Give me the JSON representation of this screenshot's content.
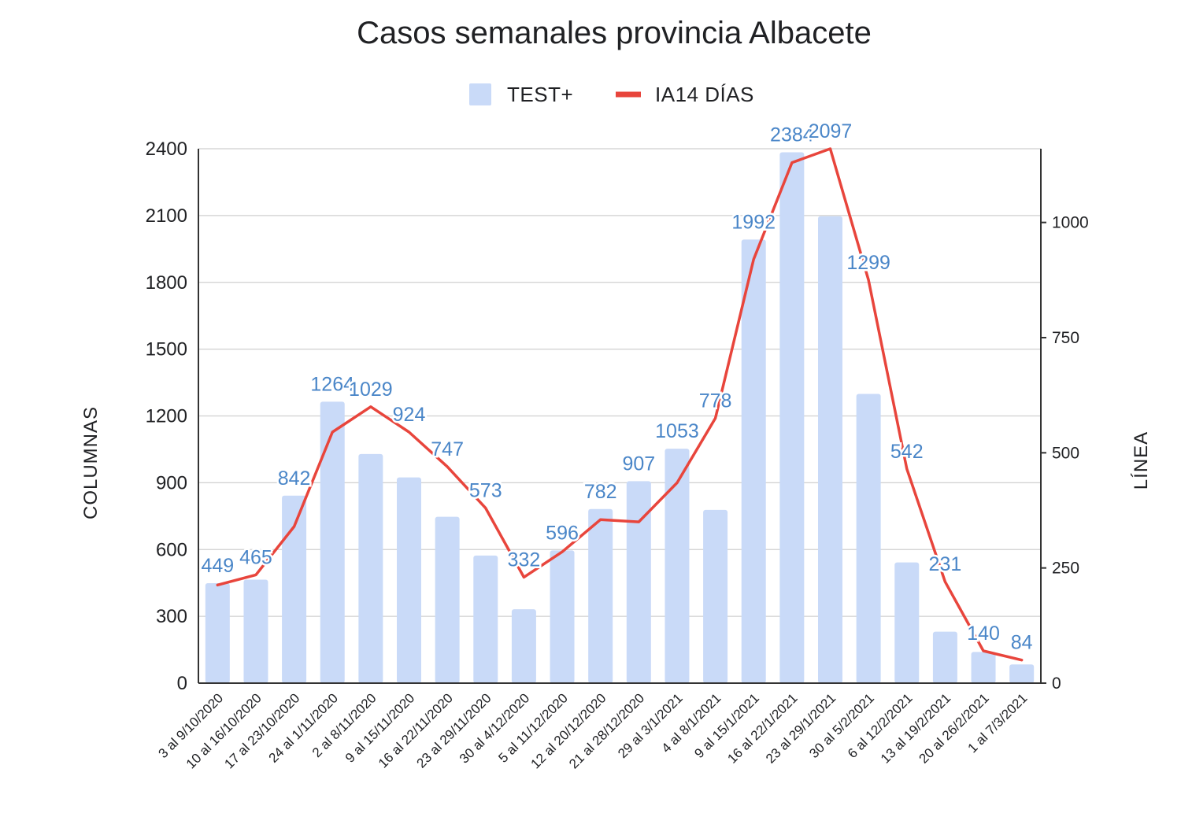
{
  "chart_data": {
    "type": "bar",
    "title": "Casos semanales provincia Albacete",
    "categories": [
      "3 al 9/10/2020",
      "10 al 16/10/2020",
      "17 al 23/10/2020",
      "24 al 1/11/2020",
      "2 al 8/11/2020",
      "9 al 15/11/2020",
      "16 al 22/11/2020",
      "23 al 29/11/2020",
      "30 al 4/12/2020",
      "5 al 11/12/2020",
      "12 al 20/12/2020",
      "21 al 28/12/2020",
      "29 al 3/1/2021",
      "4 al 8/1/2021",
      "9 al 15/1/2021",
      "16 al 22/1/2021",
      "23 al 29/1/2021",
      "30 al 5/2/2021",
      "6 al 12/2/2021",
      "13 al 19/2/2021",
      "20 al 26/2/2021",
      "1 al 7/3/2021"
    ],
    "series": [
      {
        "name": "TEST+",
        "type": "bar",
        "axis": "left",
        "color": "#c9daf8",
        "values": [
          449,
          465,
          842,
          1264,
          1029,
          924,
          747,
          573,
          332,
          596,
          782,
          907,
          1053,
          778,
          1992,
          2384,
          2097,
          1299,
          542,
          231,
          140,
          84
        ],
        "labels": [
          "449",
          "465",
          "842",
          "1264",
          "1029",
          "924",
          "747",
          "573",
          "332",
          "596",
          "782",
          "907",
          "1053",
          "778",
          "1992",
          "2384",
          "2097",
          "1299",
          "542",
          "231",
          "140",
          "84"
        ]
      },
      {
        "name": "IA14 DÍAS",
        "type": "line",
        "axis": "right",
        "color": "#e8453c",
        "values": [
          213,
          235,
          340,
          545,
          600,
          545,
          470,
          380,
          230,
          285,
          355,
          350,
          435,
          575,
          920,
          1130,
          1160,
          875,
          465,
          220,
          70,
          50
        ]
      }
    ],
    "ylabel": "COLUMNAS",
    "ylabel_right": "LÍNEA",
    "ylim": [
      0,
      2400
    ],
    "yticks": [
      "0",
      "300",
      "600",
      "900",
      "1200",
      "1500",
      "1800",
      "2100",
      "2400"
    ],
    "ylim_right": [
      0,
      1160
    ],
    "yticks_right": [
      "0",
      "250",
      "500",
      "750",
      "1000"
    ],
    "label_color": "#4a86c8",
    "grid": true,
    "legend_position": "top"
  }
}
